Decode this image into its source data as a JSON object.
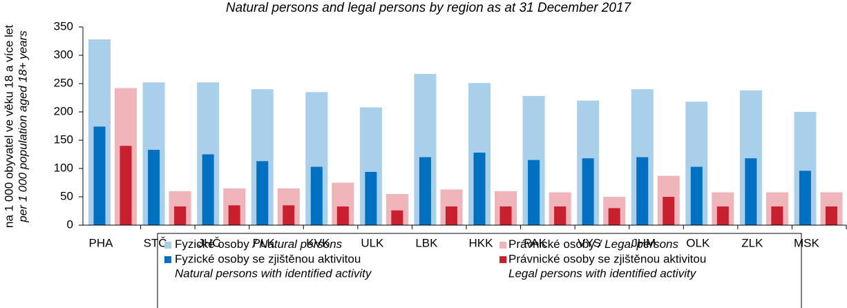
{
  "chart_data": {
    "type": "grouped-overlay-bar",
    "subtitle": "Natural persons and legal persons by region as at 31 December 2017",
    "y_label": "na 1 000 obyvatel ve věku 18 a více let",
    "y_label_en": "per 1 000 population aged 18+ years",
    "categories": [
      "PHA",
      "STČ",
      "JHČ",
      "PLK",
      "KVK",
      "ULK",
      "LBK",
      "HKK",
      "PAK",
      "VYS",
      "JHM",
      "OLK",
      "ZLK",
      "MSK"
    ],
    "series": [
      {
        "name": "Fyzické osoby",
        "name_en": "/ Natural persons",
        "color": "#a9cfea",
        "group": 0,
        "width": "wide",
        "values": [
          328,
          252,
          252,
          240,
          235,
          208,
          267,
          251,
          228,
          220,
          240,
          218,
          238,
          200
        ]
      },
      {
        "name": "Fyzické osoby se zjištěnou aktivitou",
        "name_en": "Natural persons with identified activity",
        "color": "#0070c0",
        "group": 0,
        "width": "narrow",
        "values": [
          174,
          133,
          125,
          113,
          103,
          94,
          120,
          128,
          115,
          118,
          120,
          103,
          118,
          96
        ]
      },
      {
        "name": "Právnické osoby",
        "name_en": "/ Legal persons",
        "color": "#f0b5ba",
        "group": 1,
        "width": "wide",
        "values": [
          242,
          60,
          65,
          65,
          75,
          55,
          63,
          60,
          58,
          50,
          87,
          58,
          58,
          58
        ]
      },
      {
        "name": "Právnické osoby se zjištěnou aktivitou",
        "name_en": "Legal persons with identified activity",
        "color": "#c8202e",
        "group": 1,
        "width": "narrow",
        "values": [
          140,
          33,
          35,
          35,
          33,
          26,
          33,
          33,
          33,
          30,
          50,
          33,
          33,
          33
        ]
      }
    ],
    "ylim": [
      0,
      350
    ],
    "yticks": [
      0,
      50,
      100,
      150,
      200,
      250,
      300,
      350
    ],
    "grid": false
  }
}
